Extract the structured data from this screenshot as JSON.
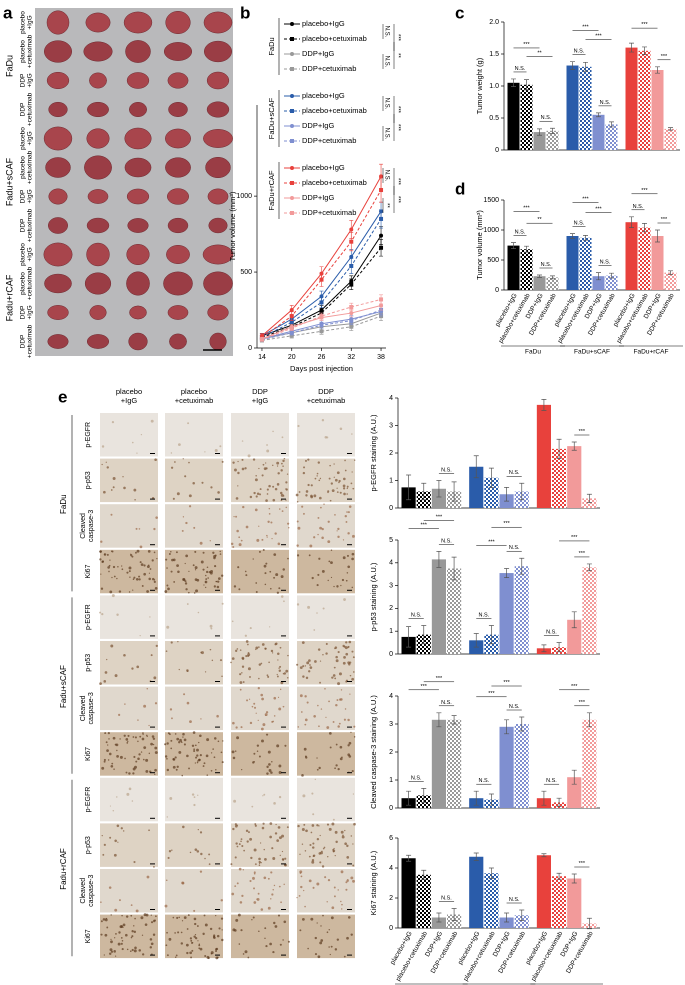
{
  "panel_labels": [
    "a",
    "b",
    "c",
    "d",
    "e"
  ],
  "panel_a": {
    "groups": [
      "FaDu",
      "Fadu+sCAF",
      "Fadu+rCAF"
    ],
    "rows": [
      [
        "placebo",
        "+IgG"
      ],
      [
        "placebo",
        "+cetuximab"
      ],
      [
        "DDP",
        "+IgG"
      ],
      [
        "DDP",
        "+cetuximab"
      ]
    ]
  },
  "panel_e": {
    "columns": [
      [
        "placebo",
        "+IgG"
      ],
      [
        "placebo",
        "+cetuximab"
      ],
      [
        "DDP",
        "+IgG"
      ],
      [
        "DDP",
        "+cetuximab"
      ]
    ],
    "rows": [
      [
        "p-EGFR"
      ],
      [
        "p-p53"
      ],
      [
        "Cleaved",
        "caspase-3"
      ],
      [
        "Ki67"
      ]
    ],
    "groups": [
      "FaDu",
      "Fadu+sCAF",
      "Fadu+rCAF"
    ]
  },
  "chart_data": [
    {
      "type": "line",
      "xlabel": "Days post injection",
      "ylabel": "Tumor volume (mm³)",
      "x": [
        14,
        20,
        26,
        32,
        38
      ],
      "xlim": [
        13,
        39
      ],
      "xticks": [
        14,
        20,
        26,
        32,
        38
      ],
      "ylim": [
        0,
        1600
      ],
      "yticks": [
        0,
        500,
        1000
      ],
      "legend_groups": [
        {
          "name": "FaDu",
          "significance": [
            "N.S.",
            "N.S.",
            "***",
            "**"
          ]
        },
        {
          "name": "FaDu+sCAF",
          "significance": [
            "N.S.",
            "N.S.",
            "***",
            "***"
          ]
        },
        {
          "name": "FaDu+rCAF",
          "significance": [
            "N.S.",
            "**",
            "***",
            "***"
          ]
        }
      ],
      "series": [
        {
          "name": "placebo+IgG",
          "color": "#000000",
          "dashed": false,
          "values": [
            80,
            150,
            250,
            440,
            740
          ],
          "errors": [
            15,
            25,
            30,
            35,
            60
          ]
        },
        {
          "name": "placebo+cetuximab",
          "color": "#000000",
          "dashed": true,
          "values": [
            70,
            140,
            230,
            420,
            660
          ],
          "errors": [
            15,
            25,
            30,
            35,
            55
          ]
        },
        {
          "name": "DDP+IgG",
          "color": "#999999",
          "dashed": false,
          "values": [
            60,
            100,
            140,
            160,
            230
          ],
          "errors": [
            10,
            15,
            20,
            25,
            30
          ]
        },
        {
          "name": "DDP+cetuximab",
          "color": "#999999",
          "dashed": true,
          "values": [
            50,
            80,
            110,
            140,
            210
          ],
          "errors": [
            10,
            15,
            20,
            25,
            30
          ]
        },
        {
          "name": "placebo+IgG",
          "color": "#2a5caa",
          "dashed": false,
          "values": [
            80,
            190,
            340,
            600,
            900
          ],
          "errors": [
            15,
            25,
            35,
            50,
            60
          ]
        },
        {
          "name": "placebo+cetuximab",
          "color": "#2a5caa",
          "dashed": true,
          "values": [
            70,
            170,
            300,
            540,
            850
          ],
          "errors": [
            15,
            25,
            35,
            50,
            60
          ]
        },
        {
          "name": "DDP+IgG",
          "color": "#7f8fd0",
          "dashed": false,
          "values": [
            60,
            110,
            160,
            190,
            240
          ],
          "errors": [
            10,
            15,
            20,
            25,
            30
          ]
        },
        {
          "name": "DDP+cetuximab",
          "color": "#7f8fd0",
          "dashed": true,
          "values": [
            55,
            100,
            150,
            180,
            250
          ],
          "errors": [
            10,
            15,
            20,
            25,
            30
          ]
        },
        {
          "name": "placebo+IgG",
          "color": "#e8413c",
          "dashed": false,
          "values": [
            80,
            250,
            490,
            780,
            1130
          ],
          "errors": [
            15,
            30,
            45,
            60,
            80
          ]
        },
        {
          "name": "placebo+cetuximab",
          "color": "#e8413c",
          "dashed": true,
          "values": [
            70,
            210,
            450,
            700,
            1040
          ],
          "errors": [
            15,
            30,
            45,
            60,
            80
          ]
        },
        {
          "name": "DDP+IgG",
          "color": "#f29a9a",
          "dashed": false,
          "values": [
            60,
            140,
            200,
            230,
            280
          ],
          "errors": [
            10,
            15,
            20,
            25,
            30
          ]
        },
        {
          "name": "DDP+cetuximab",
          "color": "#f29a9a",
          "dashed": true,
          "values": [
            55,
            130,
            210,
            270,
            320
          ],
          "errors": [
            10,
            15,
            20,
            25,
            30
          ]
        }
      ]
    },
    {
      "type": "bar",
      "ylabel": "Tumor weight (g)",
      "ylim": [
        0,
        2
      ],
      "yticks": [
        0,
        0.5,
        {
          "value": 1,
          "label": "1.0"
        },
        1.5,
        {
          "value": 2,
          "label": "2.0"
        }
      ],
      "colors": [
        "#000000",
        "#000000",
        "#999999",
        "#999999",
        "#2a5caa",
        "#2a5caa",
        "#7f8fd0",
        "#7f8fd0",
        "#e8413c",
        "#e8413c",
        "#f29a9a",
        "#f29a9a"
      ],
      "checkered": [
        false,
        true,
        false,
        true,
        false,
        true,
        false,
        true,
        false,
        true,
        false,
        true
      ],
      "values": [
        1.05,
        1.02,
        0.28,
        0.3,
        1.32,
        1.3,
        0.55,
        0.4,
        1.6,
        1.55,
        1.25,
        0.33
      ],
      "errors": [
        0.06,
        0.08,
        0.05,
        0.04,
        0.06,
        0.07,
        0.03,
        0.04,
        0.07,
        0.06,
        0.05,
        0.02
      ],
      "significance": [
        {
          "label": "N.S.",
          "bars": [
            0,
            1
          ]
        },
        {
          "label": "N.S.",
          "bars": [
            2,
            3
          ]
        },
        {
          "label": "**",
          "bars": [
            1,
            3
          ]
        },
        {
          "label": "***",
          "bars": [
            0,
            2
          ]
        },
        {
          "label": "N.S.",
          "bars": [
            4,
            5
          ]
        },
        {
          "label": "N.S.",
          "bars": [
            6,
            7
          ]
        },
        {
          "label": "***",
          "bars": [
            5,
            7
          ]
        },
        {
          "label": "***",
          "bars": [
            4,
            6
          ]
        },
        {
          "label": "***",
          "bars": [
            10,
            11
          ]
        },
        {
          "label": "***",
          "bars": [
            8,
            10
          ]
        }
      ]
    },
    {
      "type": "bar",
      "ylabel": "Tumor volume (mm³)",
      "ylim": [
        0,
        1500
      ],
      "yticks": [
        0,
        500,
        1000,
        1500
      ],
      "categories": [
        "placebo+IgG",
        "placebo+cetuximab",
        "DDP+IgG",
        "DDP+cetuximab",
        "placebo+IgG",
        "placebo+cetuximab",
        "DDP+IgG",
        "DDP+cetuximab",
        "placebo+IgG",
        "placebo+cetuximab",
        "DDP+IgG",
        "DDP+cetuximab"
      ],
      "groups": [
        "FaDu",
        "FaDu+sCAF",
        "FaDu+rCAF"
      ],
      "colors": [
        "#000000",
        "#000000",
        "#999999",
        "#999999",
        "#2a5caa",
        "#2a5caa",
        "#7f8fd0",
        "#7f8fd0",
        "#e8413c",
        "#e8413c",
        "#f29a9a",
        "#f29a9a"
      ],
      "checkered": [
        false,
        true,
        false,
        true,
        false,
        true,
        false,
        true,
        false,
        true,
        false,
        true
      ],
      "values": [
        740,
        680,
        230,
        210,
        900,
        870,
        230,
        240,
        1130,
        1040,
        900,
        290
      ],
      "errors": [
        50,
        50,
        20,
        25,
        40,
        40,
        60,
        40,
        90,
        70,
        100,
        30
      ],
      "significance": [
        {
          "label": "N.S.",
          "bars": [
            0,
            1
          ]
        },
        {
          "label": "N.S.",
          "bars": [
            2,
            3
          ]
        },
        {
          "label": "**",
          "bars": [
            1,
            3
          ]
        },
        {
          "label": "***",
          "bars": [
            0,
            2
          ]
        },
        {
          "label": "N.S.",
          "bars": [
            4,
            5
          ]
        },
        {
          "label": "N.S.",
          "bars": [
            6,
            7
          ]
        },
        {
          "label": "***",
          "bars": [
            5,
            7
          ]
        },
        {
          "label": "***",
          "bars": [
            4,
            6
          ]
        },
        {
          "label": "N.S.",
          "bars": [
            8,
            9
          ]
        },
        {
          "label": "***",
          "bars": [
            10,
            11
          ]
        },
        {
          "label": "***",
          "bars": [
            8,
            10
          ]
        }
      ]
    },
    {
      "type": "bar",
      "ylabel": "p-EGFR staining (A.U.)",
      "ylim": [
        0,
        4
      ],
      "yticks": [
        0,
        1,
        2,
        3,
        4
      ],
      "colors": [
        "#000000",
        "#000000",
        "#999999",
        "#999999",
        "#2a5caa",
        "#2a5caa",
        "#7f8fd0",
        "#7f8fd0",
        "#e8413c",
        "#e8413c",
        "#f29a9a",
        "#f29a9a"
      ],
      "checkered": [
        false,
        true,
        false,
        true,
        false,
        true,
        false,
        true,
        false,
        true,
        false,
        true
      ],
      "values": [
        0.75,
        0.6,
        0.7,
        0.6,
        1.5,
        1.1,
        0.5,
        0.6,
        3.75,
        2.15,
        2.25,
        0.35
      ],
      "errors": [
        0.45,
        0.3,
        0.3,
        0.35,
        0.4,
        0.35,
        0.25,
        0.3,
        0.2,
        0.35,
        0.15,
        0.15
      ],
      "significance": [
        {
          "label": "N.S.",
          "bars": [
            2,
            3
          ]
        },
        {
          "label": "N.S.",
          "bars": [
            6,
            7
          ]
        },
        {
          "label": "***",
          "bars": [
            10,
            11
          ]
        }
      ]
    },
    {
      "type": "bar",
      "ylabel": "p-p53 staining (A.U.)",
      "ylim": [
        0,
        5
      ],
      "yticks": [
        0,
        1,
        2,
        3,
        4,
        5
      ],
      "colors": [
        "#000000",
        "#000000",
        "#999999",
        "#999999",
        "#2a5caa",
        "#2a5caa",
        "#7f8fd0",
        "#7f8fd0",
        "#e8413c",
        "#e8413c",
        "#f29a9a",
        "#f29a9a"
      ],
      "checkered": [
        false,
        true,
        false,
        true,
        false,
        true,
        false,
        true,
        false,
        true,
        false,
        true
      ],
      "values": [
        0.75,
        0.85,
        4.15,
        3.75,
        0.6,
        0.85,
        3.55,
        3.85,
        0.25,
        0.3,
        1.5,
        3.8
      ],
      "errors": [
        0.45,
        0.4,
        0.35,
        0.5,
        0.3,
        0.4,
        0.2,
        0.35,
        0.15,
        0.2,
        0.35,
        0.15
      ],
      "significance": [
        {
          "label": "N.S.",
          "bars": [
            0,
            1
          ]
        },
        {
          "label": "N.S.",
          "bars": [
            2,
            3
          ]
        },
        {
          "label": "***",
          "bars": [
            0,
            2
          ]
        },
        {
          "label": "***",
          "bars": [
            1,
            3
          ]
        },
        {
          "label": "N.S.",
          "bars": [
            4,
            5
          ]
        },
        {
          "label": "N.S.",
          "bars": [
            6,
            7
          ]
        },
        {
          "label": "***",
          "bars": [
            4,
            6
          ]
        },
        {
          "label": "***",
          "bars": [
            5,
            7
          ]
        },
        {
          "label": "N.S.",
          "bars": [
            8,
            9
          ]
        },
        {
          "label": "***",
          "bars": [
            10,
            11
          ]
        },
        {
          "label": "***",
          "bars": [
            9,
            11
          ]
        }
      ]
    },
    {
      "type": "bar",
      "ylabel": "Cleaved caspase-3 staining (A.U.)",
      "ylim": [
        0,
        4
      ],
      "yticks": [
        0,
        1,
        2,
        3,
        4
      ],
      "colors": [
        "#000000",
        "#000000",
        "#999999",
        "#999999",
        "#2a5caa",
        "#2a5caa",
        "#7f8fd0",
        "#7f8fd0",
        "#e8413c",
        "#e8413c",
        "#f29a9a",
        "#f29a9a"
      ],
      "checkered": [
        false,
        true,
        false,
        true,
        false,
        true,
        false,
        true,
        false,
        true,
        false,
        true
      ],
      "values": [
        0.35,
        0.45,
        3.15,
        3.15,
        0.35,
        0.3,
        2.9,
        3.0,
        0.35,
        0.2,
        1.1,
        3.15
      ],
      "errors": [
        0.25,
        0.25,
        0.25,
        0.15,
        0.25,
        0.2,
        0.25,
        0.25,
        0.25,
        0.15,
        0.25,
        0.25
      ],
      "significance": [
        {
          "label": "N.S.",
          "bars": [
            0,
            1
          ]
        },
        {
          "label": "N.S.",
          "bars": [
            2,
            3
          ]
        },
        {
          "label": "***",
          "bars": [
            0,
            2
          ]
        },
        {
          "label": "***",
          "bars": [
            1,
            3
          ]
        },
        {
          "label": "N.S.",
          "bars": [
            4,
            5
          ]
        },
        {
          "label": "N.S.",
          "bars": [
            6,
            7
          ]
        },
        {
          "label": "***",
          "bars": [
            4,
            6
          ]
        },
        {
          "label": "***",
          "bars": [
            5,
            7
          ]
        },
        {
          "label": "N.S.",
          "bars": [
            8,
            9
          ]
        },
        {
          "label": "***",
          "bars": [
            10,
            11
          ]
        },
        {
          "label": "***",
          "bars": [
            9,
            11
          ]
        }
      ]
    },
    {
      "type": "bar",
      "ylabel": "Ki67 staining (A.U.)",
      "ylim": [
        0,
        6
      ],
      "yticks": [
        0,
        2,
        4,
        6
      ],
      "categories": [
        "placebo+IgG",
        "placebo+cetuximab",
        "DDP+IgG",
        "DDP+cetuximab",
        "placebo+IgG",
        "placebo+cetuximab",
        "DDP+IgG",
        "DDP+cetuximab",
        "placebo+IgG",
        "placebo+cetuximab",
        "DDP+IgG",
        "DDP+cetuximab"
      ],
      "groups": [
        "FaDu",
        "FaDu+sCAF",
        "FaDu+rCAF"
      ],
      "colors": [
        "#000000",
        "#000000",
        "#999999",
        "#999999",
        "#2a5caa",
        "#2a5caa",
        "#7f8fd0",
        "#7f8fd0",
        "#e8413c",
        "#e8413c",
        "#f29a9a",
        "#f29a9a"
      ],
      "checkered": [
        false,
        true,
        false,
        true,
        false,
        true,
        false,
        true,
        false,
        true,
        false,
        true
      ],
      "values": [
        4.65,
        3.55,
        0.7,
        0.9,
        4.75,
        3.65,
        0.7,
        0.85,
        4.85,
        3.45,
        3.3,
        0.3
      ],
      "errors": [
        0.2,
        0.3,
        0.3,
        0.4,
        0.25,
        0.35,
        0.3,
        0.35,
        0.1,
        0.2,
        0.3,
        0.35
      ],
      "significance": [
        {
          "label": "N.S.",
          "bars": [
            2,
            3
          ]
        },
        {
          "label": "N.S.",
          "bars": [
            6,
            7
          ]
        },
        {
          "label": "***",
          "bars": [
            10,
            11
          ]
        }
      ]
    }
  ]
}
